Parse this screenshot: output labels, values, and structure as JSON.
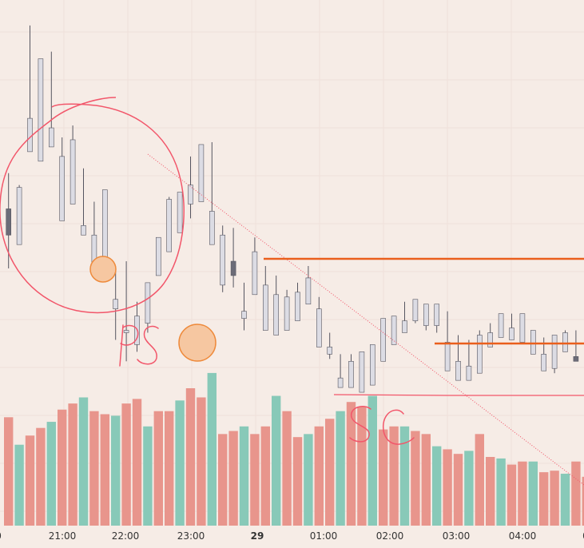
{
  "chart_data": {
    "type": "candlestick",
    "x_axis": {
      "tick_labels": [
        "0",
        "21:00",
        "22:00",
        "23:00",
        "29",
        "01:00",
        "02:00",
        "03:00",
        "04:00",
        "0"
      ],
      "bold_labels": [
        "29"
      ]
    },
    "grid": true,
    "ohlc": [
      [
        80,
        55,
        95,
        69
      ],
      [
        65,
        70,
        90,
        89
      ],
      [
        104,
        133,
        157,
        118
      ],
      [
        100,
        138,
        121,
        143
      ],
      [
        106,
        125,
        146,
        114
      ],
      [
        75,
        92,
        110,
        102
      ],
      [
        82,
        102,
        115,
        109
      ],
      [
        69,
        86,
        97,
        73
      ],
      [
        55,
        72,
        83,
        69
      ],
      [
        55,
        81,
        59,
        88
      ],
      [
        38,
        55,
        25,
        42
      ],
      [
        28,
        58,
        16,
        29
      ],
      [
        23,
        41,
        20,
        35
      ],
      [
        32,
        47,
        28,
        49
      ],
      [
        52,
        62,
        57,
        68
      ],
      [
        62,
        85,
        71,
        84
      ],
      [
        70,
        87,
        71,
        87
      ],
      [
        82,
        102,
        76,
        90
      ],
      [
        83,
        95,
        93,
        107
      ],
      [
        65,
        108,
        85,
        79
      ],
      [
        48,
        73,
        45,
        69
      ],
      [
        58,
        72,
        47,
        52
      ],
      [
        34,
        49,
        29,
        37
      ],
      [
        44,
        68,
        55,
        62
      ],
      [
        29,
        56,
        40,
        48
      ],
      [
        27,
        52,
        34,
        44
      ],
      [
        29,
        46,
        34,
        43
      ],
      [
        33,
        49,
        37,
        45
      ],
      [
        40,
        56,
        48,
        51
      ],
      [
        22,
        43,
        32,
        38
      ],
      [
        19,
        28,
        17,
        22
      ],
      [
        5,
        19,
        12,
        9
      ],
      [
        5,
        19,
        11,
        16
      ],
      [
        3,
        15,
        10,
        20
      ],
      [
        6,
        13,
        11,
        23
      ],
      [
        16,
        28,
        21,
        34
      ],
      [
        23,
        31,
        27,
        35
      ],
      [
        28,
        41,
        30,
        33
      ],
      [
        33,
        37,
        32,
        42
      ],
      [
        31,
        36,
        29,
        40
      ],
      [
        31,
        35,
        28,
        40
      ],
      [
        12,
        37,
        25,
        24
      ],
      [
        8,
        27,
        17,
        16
      ],
      [
        8,
        25,
        9,
        14
      ],
      [
        11,
        29,
        21,
        27
      ],
      [
        22,
        32,
        25,
        28
      ],
      [
        26,
        34,
        27,
        36
      ],
      [
        25,
        36,
        25,
        30
      ],
      [
        24,
        27,
        28,
        36
      ],
      [
        19,
        26,
        20,
        29
      ],
      [
        12,
        26,
        14,
        19
      ],
      [
        13,
        23,
        11,
        27
      ],
      [
        20,
        29,
        23,
        28
      ],
      [
        18,
        29,
        21,
        16
      ],
      [
        17,
        25,
        23,
        30
      ]
    ],
    "volume": [
      71,
      53,
      59,
      64,
      68,
      76,
      80,
      84,
      75,
      73,
      72,
      80,
      83,
      65,
      75,
      75,
      82,
      90,
      84,
      100,
      60,
      62,
      65,
      60,
      65,
      85,
      75,
      58,
      60,
      65,
      70,
      75,
      81,
      78,
      85,
      63,
      65,
      65,
      62,
      60,
      52,
      50,
      47,
      49,
      60,
      45,
      44,
      40,
      42,
      42,
      35,
      36,
      34,
      42,
      32
    ],
    "volume_colors": [
      "#e8958c",
      "#88c9b8"
    ]
  },
  "colors": {
    "background": "#f6ece6",
    "candle_down": "#6c6c78",
    "candle_up": "#dcdce4",
    "wick": "#555560",
    "annotation_red": "#f2566a",
    "level_orange": "#ea5f1c",
    "marker_fill": "#f6c7a1",
    "marker_stroke": "#ee8a3b",
    "axis_text": "#333333",
    "grid": "#efe0da"
  }
}
